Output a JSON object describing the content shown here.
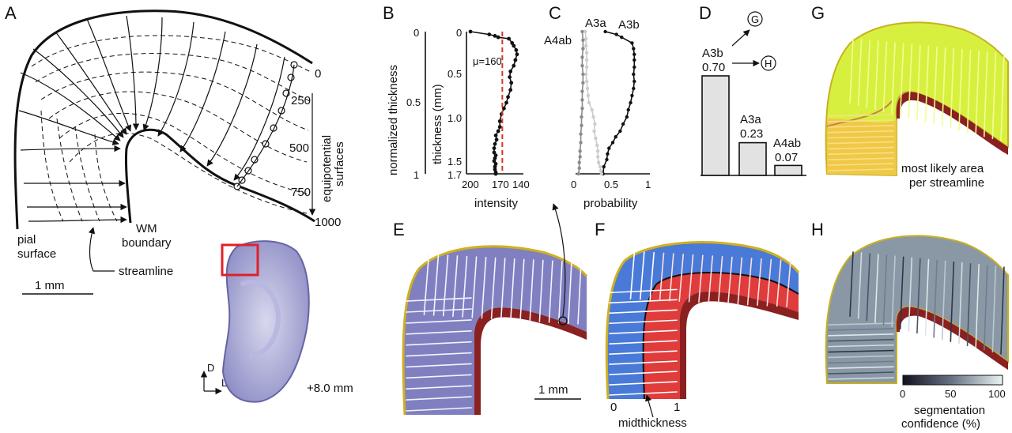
{
  "panels": {
    "a": {
      "letter": "A",
      "pial_label": "pial",
      "pial_label2": "surface",
      "wm_label": "WM",
      "wm_label2": "boundary",
      "streamline_label": "streamline",
      "scale_label": "1 mm",
      "equipotential_label": "equipotential",
      "equipotential_label2": "surfaces",
      "depth_ticks": [
        "0",
        "250",
        "500",
        "750",
        "1000"
      ],
      "orientation_d": "D",
      "orientation_l": "L",
      "section_label": "+8.0 mm"
    },
    "b": {
      "letter": "B",
      "ylabel_outer": "normalized thickness",
      "ylabel_inner": "thickness (mm)",
      "outer_ticks": [
        "0",
        "0.5",
        "1"
      ],
      "inner_ticks": [
        "0",
        "0.5",
        "1.0",
        "1.5",
        "1.7"
      ],
      "xlabel": "intensity",
      "xticks": [
        "200",
        "170",
        "140"
      ],
      "mean_label": "μ=160",
      "mean_color": "#e0302a"
    },
    "c": {
      "letter": "C",
      "xlabel": "probability",
      "xticks": [
        "0",
        "0.5",
        "1"
      ],
      "curve_labels": [
        "A4ab",
        "A3a",
        "A3b"
      ]
    },
    "d": {
      "letter": "D",
      "bars": [
        {
          "area": "A3b",
          "value": "0.70"
        },
        {
          "area": "A3a",
          "value": "0.23"
        },
        {
          "area": "A4ab",
          "value": "0.07"
        }
      ],
      "arrow_g": "G",
      "arrow_h": "H"
    },
    "e": {
      "letter": "E",
      "scale_label": "1 mm"
    },
    "f": {
      "letter": "F",
      "tick0": "0",
      "tick1": "1",
      "mid_label": "midthickness"
    },
    "g": {
      "letter": "G",
      "caption1": "most likely area",
      "caption2": "per streamline"
    },
    "h": {
      "letter": "H",
      "colorbar_ticks": [
        "0",
        "50",
        "100"
      ],
      "colorbar_label1": "segmentation",
      "colorbar_label2": "confidence (%)"
    }
  },
  "chart_data": [
    {
      "type": "line",
      "x": [
        199,
        176,
        169,
        165,
        152,
        148,
        146,
        143,
        142,
        144,
        146,
        150,
        151,
        149,
        150,
        153,
        155,
        158,
        161,
        163,
        163,
        165,
        168,
        167,
        169,
        170,
        170,
        168,
        169,
        170,
        168,
        169,
        169,
        168,
        168
      ],
      "y": [
        0.0,
        0.02,
        0.03,
        0.04,
        0.05,
        0.08,
        0.1,
        0.13,
        0.16,
        0.2,
        0.24,
        0.28,
        0.32,
        0.36,
        0.41,
        0.46,
        0.5,
        0.54,
        0.58,
        0.63,
        0.67,
        0.7,
        0.73,
        0.76,
        0.79,
        0.82,
        0.85,
        0.87,
        0.89,
        0.91,
        0.93,
        0.95,
        0.97,
        0.99,
        1.0
      ],
      "mean": 160,
      "xlabel": "intensity",
      "ylabel": "normalized thickness",
      "xlim": [
        200,
        140
      ],
      "ylim": [
        1,
        0
      ]
    },
    {
      "type": "line",
      "series": [
        {
          "name": "A3b",
          "x": [
            0.4,
            0.55,
            0.62,
            0.76,
            0.78,
            0.79,
            0.79,
            0.79,
            0.78,
            0.79,
            0.78,
            0.76,
            0.74,
            0.71,
            0.69,
            0.64,
            0.6,
            0.54,
            0.5,
            0.45,
            0.43,
            0.42,
            0.38,
            0.37
          ],
          "y": [
            0.0,
            0.02,
            0.04,
            0.08,
            0.12,
            0.16,
            0.2,
            0.25,
            0.3,
            0.35,
            0.4,
            0.45,
            0.5,
            0.55,
            0.6,
            0.65,
            0.7,
            0.74,
            0.78,
            0.82,
            0.86,
            0.9,
            0.95,
            1.0
          ]
        },
        {
          "name": "A3a",
          "x": [
            0.13,
            0.14,
            0.14,
            0.15,
            0.15,
            0.15,
            0.14,
            0.15,
            0.16,
            0.17,
            0.18,
            0.22,
            0.24,
            0.26,
            0.25,
            0.27,
            0.29,
            0.3,
            0.3,
            0.31,
            0.33,
            0.34,
            0.35
          ],
          "y": [
            0.0,
            0.05,
            0.1,
            0.15,
            0.2,
            0.25,
            0.3,
            0.35,
            0.4,
            0.45,
            0.5,
            0.55,
            0.6,
            0.65,
            0.7,
            0.75,
            0.8,
            0.84,
            0.88,
            0.92,
            0.95,
            0.98,
            1.0
          ]
        },
        {
          "name": "A4ab",
          "x": [
            0.09,
            0.1,
            0.1,
            0.09,
            0.09,
            0.1,
            0.1,
            0.09,
            0.09,
            0.09,
            0.08,
            0.08,
            0.07,
            0.07,
            0.06,
            0.06,
            0.05,
            0.05,
            0.04
          ],
          "y": [
            0.0,
            0.06,
            0.12,
            0.18,
            0.24,
            0.3,
            0.36,
            0.42,
            0.48,
            0.54,
            0.6,
            0.66,
            0.72,
            0.78,
            0.84,
            0.88,
            0.92,
            0.96,
            1.0
          ]
        }
      ],
      "xlabel": "probability",
      "xlim": [
        0,
        1
      ],
      "ylim": [
        1,
        0
      ]
    },
    {
      "type": "bar",
      "categories": [
        "A3b",
        "A3a",
        "A4ab"
      ],
      "values": [
        0.7,
        0.23,
        0.07
      ],
      "ylim": [
        0,
        1
      ]
    }
  ]
}
